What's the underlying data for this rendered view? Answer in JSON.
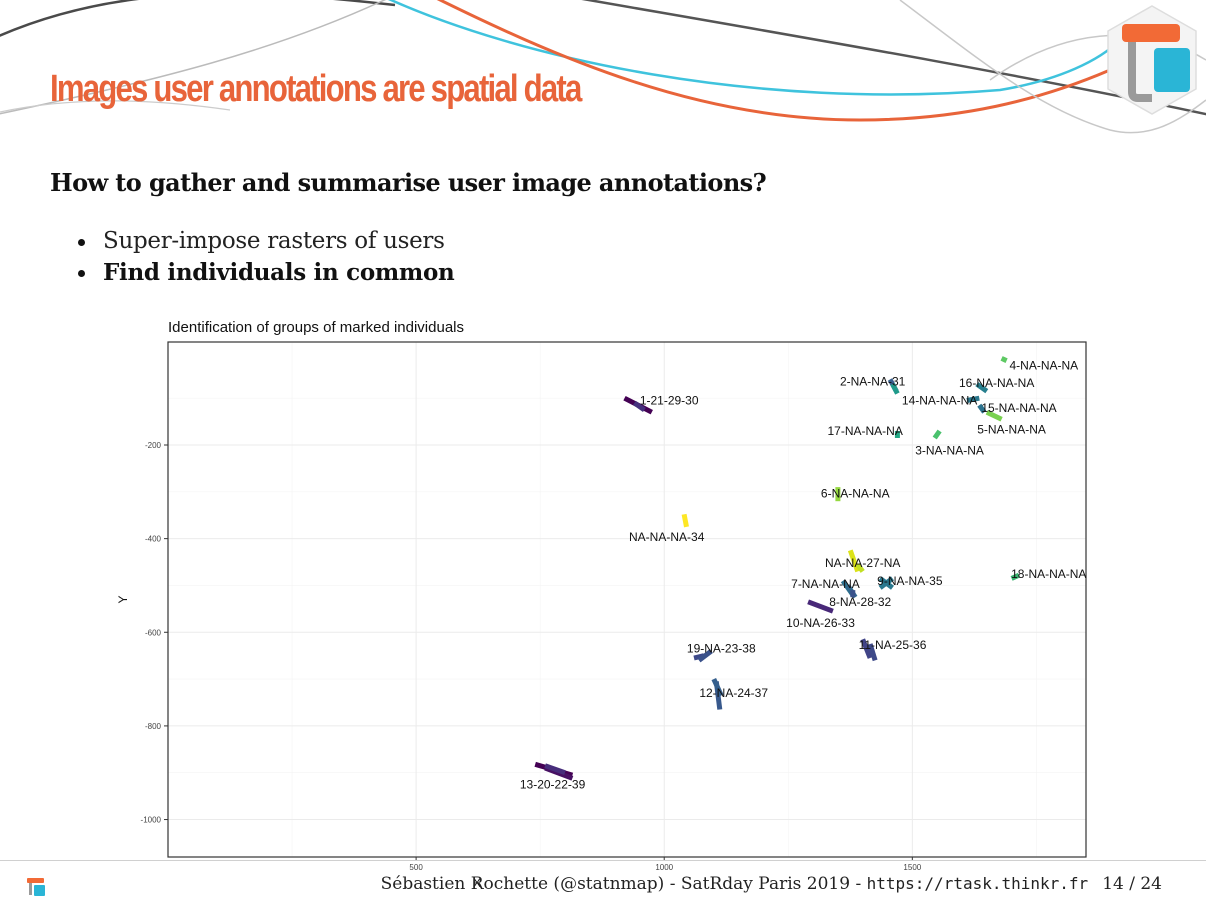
{
  "slide": {
    "title": "Images user annotations are spatial data",
    "question": "How to gather and summarise user image annotations?",
    "bullets": [
      {
        "text": "Super-impose rasters of users"
      },
      {
        "text": "Find individuals in common"
      }
    ]
  },
  "colors": {
    "title": "#e8643a",
    "logo_orange": "#f26a36",
    "logo_blue": "#2ab5d6",
    "logo_gray": "#9a9a9a"
  },
  "icons": [
    "thinkr-logo",
    "thinkr-logo-small"
  ],
  "footer": {
    "author": "Sébastien Rochette (@statnmap) - SatRday Paris 2019 - ",
    "url": "https://rtask.thinkr.fr",
    "page": "14 / 24"
  },
  "chart_data": {
    "type": "line",
    "title": "Identification of groups of marked individuals",
    "xlabel": "X",
    "ylabel": "Y",
    "xlim": [
      0,
      1850
    ],
    "ylim": [
      -1080,
      20
    ],
    "x_ticks": [
      500,
      1000,
      1500
    ],
    "x_tick_labels": [
      "500",
      "1000",
      "1500"
    ],
    "y_ticks": [
      -200,
      -400,
      -600,
      -800,
      -1000
    ],
    "y_tick_labels": [
      "-200",
      "-400",
      "-600",
      "-800",
      "-1000"
    ],
    "grid": true,
    "legend": "none",
    "series": [
      {
        "color": "#440154",
        "x": [
          920,
          975
        ],
        "y": [
          -100,
          -130
        ]
      },
      {
        "color": "#46317e",
        "x": [
          940,
          960
        ],
        "y": [
          -110,
          -125
        ]
      },
      {
        "color": "#365d8d",
        "x": [
          1455,
          1468
        ],
        "y": [
          -60,
          -85
        ]
      },
      {
        "color": "#1f9a8a",
        "x": [
          1460,
          1470
        ],
        "y": [
          -70,
          -90
        ]
      },
      {
        "color": "#5dc963",
        "x": [
          1680,
          1690
        ],
        "y": [
          -15,
          -20
        ]
      },
      {
        "color": "#277f8e",
        "x": [
          1630,
          1650
        ],
        "y": [
          -70,
          -85
        ]
      },
      {
        "color": "#2a788e",
        "x": [
          1610,
          1635
        ],
        "y": [
          -105,
          -100
        ]
      },
      {
        "color": "#2c728e",
        "x": [
          1635,
          1645
        ],
        "y": [
          -115,
          -130
        ]
      },
      {
        "color": "#7ad151",
        "x": [
          1650,
          1680
        ],
        "y": [
          -130,
          -145
        ]
      },
      {
        "color": "#4ac16d",
        "x": [
          1545,
          1555
        ],
        "y": [
          -185,
          -170
        ]
      },
      {
        "color": "#22a884",
        "x": [
          1470,
          1470
        ],
        "y": [
          -170,
          -185
        ]
      },
      {
        "color": "#95d840",
        "x": [
          1350,
          1350
        ],
        "y": [
          -290,
          -320
        ]
      },
      {
        "color": "#fde725",
        "x": [
          1040,
          1045
        ],
        "y": [
          -348,
          -375
        ]
      },
      {
        "color": "#dce319",
        "x": [
          1375,
          1390
        ],
        "y": [
          -425,
          -470
        ]
      },
      {
        "color": "#c2df23",
        "x": [
          1390,
          1400
        ],
        "y": [
          -455,
          -470
        ]
      },
      {
        "color": "#2d708e",
        "x": [
          1360,
          1380
        ],
        "y": [
          -490,
          -520
        ]
      },
      {
        "color": "#31688e",
        "x": [
          1370,
          1385
        ],
        "y": [
          -500,
          -525
        ]
      },
      {
        "color": "#2a788e",
        "x": [
          1435,
          1460
        ],
        "y": [
          -485,
          -505
        ]
      },
      {
        "color": "#2a788e",
        "x": [
          1435,
          1460
        ],
        "y": [
          -505,
          -485
        ]
      },
      {
        "color": "#3b528b",
        "x": [
          1380,
          1380
        ],
        "y": [
          -510,
          -525
        ]
      },
      {
        "color": "#3ab26f",
        "x": [
          1700,
          1715
        ],
        "y": [
          -485,
          -478
        ]
      },
      {
        "color": "#482878",
        "x": [
          1290,
          1340
        ],
        "y": [
          -535,
          -555
        ]
      },
      {
        "color": "#414487",
        "x": [
          1400,
          1415
        ],
        "y": [
          -615,
          -655
        ]
      },
      {
        "color": "#3e4a89",
        "x": [
          1415,
          1425
        ],
        "y": [
          -625,
          -660
        ]
      },
      {
        "color": "#3e4989",
        "x": [
          1060,
          1080
        ],
        "y": [
          -655,
          -650
        ]
      },
      {
        "color": "#3b528b",
        "x": [
          1070,
          1095
        ],
        "y": [
          -660,
          -640
        ]
      },
      {
        "color": "#38598c",
        "x": [
          1105,
          1112
        ],
        "y": [
          -705,
          -765
        ]
      },
      {
        "color": "#355f8d",
        "x": [
          1100,
          1115
        ],
        "y": [
          -700,
          -735
        ]
      },
      {
        "color": "#440154",
        "x": [
          740,
          815
        ],
        "y": [
          -882,
          -905
        ]
      },
      {
        "color": "#471063",
        "x": [
          760,
          815
        ],
        "y": [
          -890,
          -912
        ]
      },
      {
        "color": "#472d7b",
        "x": [
          760,
          800
        ],
        "y": [
          -885,
          -900
        ]
      }
    ],
    "annotations": [
      {
        "text": "1-21-29-30",
        "x": 1010,
        "y": -105
      },
      {
        "text": "2-NA-NA-31",
        "x": 1420,
        "y": -64
      },
      {
        "text": "16-NA-NA-NA",
        "x": 1670,
        "y": -68
      },
      {
        "text": "4-NA-NA-NA",
        "x": 1765,
        "y": -30
      },
      {
        "text": "14-NA-NA-NA",
        "x": 1555,
        "y": -105
      },
      {
        "text": "15-NA-NA-NA",
        "x": 1715,
        "y": -121
      },
      {
        "text": "5-NA-NA-NA",
        "x": 1700,
        "y": -167
      },
      {
        "text": "17-NA-NA-NA",
        "x": 1405,
        "y": -170
      },
      {
        "text": "3-NA-NA-NA",
        "x": 1575,
        "y": -212
      },
      {
        "text": "6-NA-NA-NA",
        "x": 1385,
        "y": -304
      },
      {
        "text": "NA-NA-NA-34",
        "x": 1005,
        "y": -397
      },
      {
        "text": "NA-NA-27-NA",
        "x": 1400,
        "y": -452
      },
      {
        "text": "18-NA-NA-NA",
        "x": 1775,
        "y": -476
      },
      {
        "text": "9-NA-NA-35",
        "x": 1495,
        "y": -490
      },
      {
        "text": "7-NA-NA-NA",
        "x": 1325,
        "y": -497
      },
      {
        "text": "8-NA-28-32",
        "x": 1395,
        "y": -535
      },
      {
        "text": "10-NA-26-33",
        "x": 1315,
        "y": -580
      },
      {
        "text": "11-NA-25-36",
        "x": 1460,
        "y": -627
      },
      {
        "text": "19-NA-23-38",
        "x": 1115,
        "y": -635
      },
      {
        "text": "12-NA-24-37",
        "x": 1140,
        "y": -730
      },
      {
        "text": "13-20-22-39",
        "x": 775,
        "y": -925
      }
    ]
  }
}
